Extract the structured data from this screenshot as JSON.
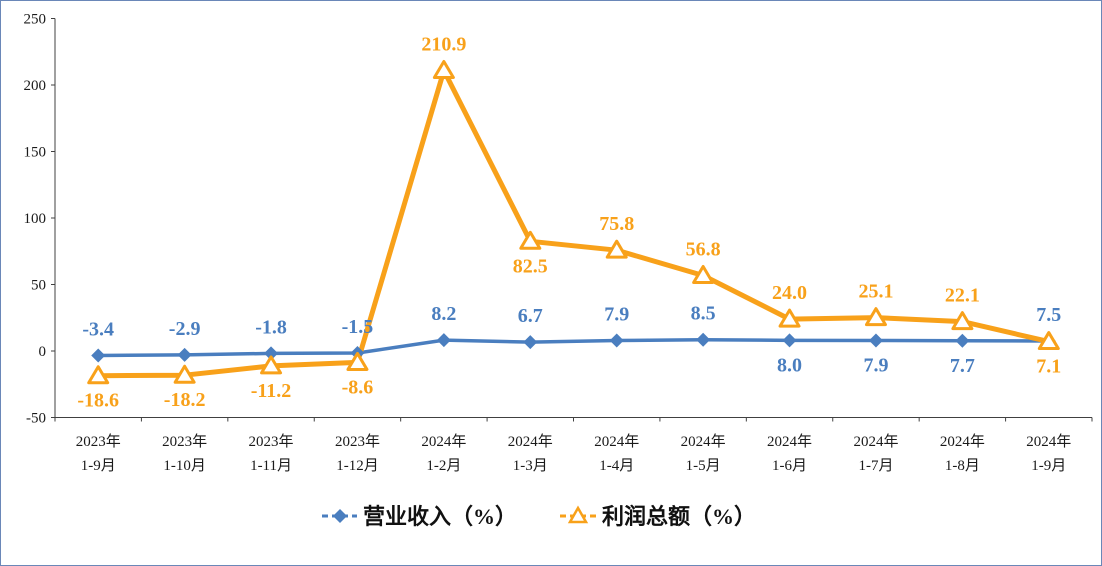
{
  "chart_data": {
    "type": "line",
    "categories": [
      [
        "2023年",
        "1-9月"
      ],
      [
        "2023年",
        "1-10月"
      ],
      [
        "2023年",
        "1-11月"
      ],
      [
        "2023年",
        "1-12月"
      ],
      [
        "2024年",
        "1-2月"
      ],
      [
        "2024年",
        "1-3月"
      ],
      [
        "2024年",
        "1-4月"
      ],
      [
        "2024年",
        "1-5月"
      ],
      [
        "2024年",
        "1-6月"
      ],
      [
        "2024年",
        "1-7月"
      ],
      [
        "2024年",
        "1-8月"
      ],
      [
        "2024年",
        "1-9月"
      ]
    ],
    "series": [
      {
        "name": "营业收入（%）",
        "values": [
          -3.4,
          -2.9,
          -1.8,
          -1.5,
          8.2,
          6.7,
          7.9,
          8.5,
          8.0,
          7.9,
          7.7,
          7.5
        ],
        "color": "#4a7ebf",
        "marker": "diamond"
      },
      {
        "name": "利润总额（%）",
        "values": [
          -18.6,
          -18.2,
          -11.2,
          -8.6,
          210.9,
          82.5,
          75.8,
          56.8,
          24.0,
          25.1,
          22.1,
          7.1
        ],
        "color": "#f8a11a",
        "marker": "triangle"
      }
    ],
    "ylim": [
      -50,
      250
    ],
    "yticks": [
      -50,
      0,
      50,
      100,
      150,
      200,
      250
    ],
    "grid": false,
    "legend": "bottom"
  }
}
